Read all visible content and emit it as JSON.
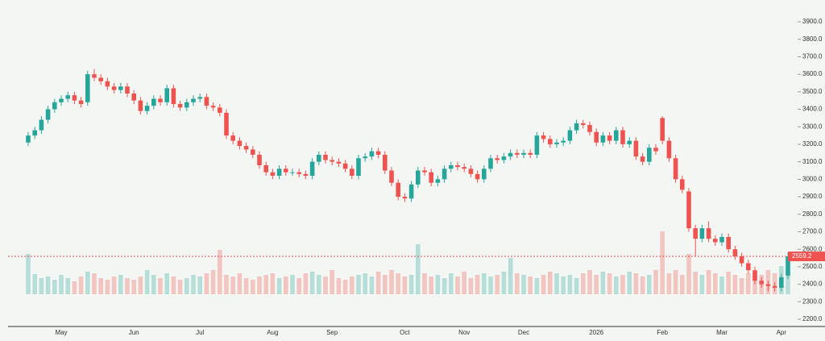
{
  "chart_data": {
    "type": "candlestick",
    "up_color": "#26a69a",
    "down_color": "#ef5350",
    "categories": [
      null,
      null,
      null,
      null,
      null,
      "May",
      null,
      null,
      null,
      null,
      null,
      null,
      null,
      null,
      null,
      null,
      "Jun",
      null,
      null,
      null,
      null,
      null,
      null,
      null,
      null,
      null,
      "Jul",
      null,
      null,
      null,
      null,
      null,
      null,
      null,
      null,
      null,
      null,
      "Aug",
      null,
      null,
      null,
      null,
      null,
      null,
      null,
      null,
      "Sep",
      null,
      null,
      null,
      null,
      null,
      null,
      null,
      null,
      null,
      null,
      "Oct",
      null,
      null,
      null,
      null,
      null,
      null,
      null,
      null,
      "Nov",
      null,
      null,
      null,
      null,
      null,
      null,
      null,
      null,
      "Dec",
      null,
      null,
      null,
      null,
      null,
      null,
      null,
      null,
      null,
      null,
      "2026",
      null,
      null,
      null,
      null,
      null,
      null,
      null,
      null,
      null,
      "Feb",
      null,
      null,
      null,
      null,
      null,
      null,
      null,
      null,
      "Mar",
      null,
      null,
      null,
      null,
      null,
      null,
      null,
      null,
      "Apr",
      null
    ],
    "open": [
      3210,
      3250,
      3280,
      3340,
      3400,
      3440,
      3460,
      3480,
      3450,
      3440,
      3600,
      3580,
      3560,
      3530,
      3510,
      3530,
      3490,
      3450,
      3390,
      3420,
      3460,
      3440,
      3520,
      3430,
      3410,
      3440,
      3460,
      3470,
      3420,
      3410,
      3380,
      3250,
      3220,
      3190,
      3170,
      3140,
      3080,
      3040,
      3020,
      3060,
      3040,
      3040,
      3030,
      3020,
      3100,
      3140,
      3110,
      3100,
      3090,
      3060,
      3020,
      3120,
      3130,
      3160,
      3140,
      3050,
      2980,
      2900,
      2890,
      2970,
      3050,
      3040,
      2980,
      3000,
      3060,
      3080,
      3070,
      3060,
      3030,
      3000,
      3060,
      3120,
      3110,
      3130,
      3150,
      3140,
      3150,
      3140,
      3250,
      3230,
      3200,
      3210,
      3220,
      3280,
      3320,
      3310,
      3270,
      3210,
      3250,
      3220,
      3280,
      3200,
      3220,
      3130,
      3100,
      3180,
      3350,
      3220,
      3120,
      3000,
      2930,
      2720,
      2660,
      2720,
      2660,
      2640,
      2670,
      2600,
      2560,
      2520,
      2480,
      2420,
      2400,
      2390,
      2380,
      2450
    ],
    "high": [
      3270,
      3300,
      3360,
      3420,
      3460,
      3480,
      3500,
      3500,
      3470,
      3620,
      3630,
      3600,
      3580,
      3550,
      3550,
      3550,
      3510,
      3470,
      3440,
      3480,
      3480,
      3540,
      3540,
      3450,
      3460,
      3480,
      3490,
      3490,
      3440,
      3430,
      3400,
      3270,
      3240,
      3210,
      3190,
      3160,
      3100,
      3060,
      3080,
      3080,
      3060,
      3060,
      3050,
      3120,
      3160,
      3160,
      3130,
      3120,
      3110,
      3080,
      3140,
      3150,
      3180,
      3180,
      3160,
      3070,
      3000,
      2920,
      2990,
      3070,
      3070,
      3060,
      3020,
      3080,
      3100,
      3100,
      3090,
      3080,
      3050,
      3080,
      3140,
      3140,
      3150,
      3170,
      3170,
      3170,
      3170,
      3270,
      3270,
      3250,
      3230,
      3240,
      3300,
      3340,
      3340,
      3330,
      3290,
      3270,
      3270,
      3300,
      3300,
      3240,
      3240,
      3150,
      3200,
      3200,
      3360,
      3240,
      3140,
      3020,
      2950,
      2740,
      2740,
      2760,
      2680,
      2690,
      2690,
      2620,
      2580,
      2540,
      2500,
      2440,
      2420,
      2410,
      2460,
      2580
    ],
    "low": [
      3190,
      3230,
      3260,
      3320,
      3380,
      3420,
      3440,
      3430,
      3410,
      3420,
      3560,
      3540,
      3510,
      3490,
      3490,
      3470,
      3430,
      3370,
      3370,
      3400,
      3420,
      3420,
      3410,
      3390,
      3390,
      3420,
      3440,
      3400,
      3390,
      3360,
      3230,
      3200,
      3170,
      3150,
      3120,
      3060,
      3020,
      3000,
      3000,
      3020,
      3020,
      3010,
      3000,
      3000,
      3080,
      3090,
      3080,
      3070,
      3040,
      3000,
      3000,
      3100,
      3110,
      3120,
      3030,
      2960,
      2880,
      2870,
      2870,
      2950,
      3020,
      2960,
      2960,
      2980,
      3040,
      3050,
      3040,
      3010,
      2980,
      2980,
      3040,
      3090,
      3090,
      3110,
      3120,
      3120,
      3120,
      3120,
      3210,
      3180,
      3180,
      3190,
      3200,
      3260,
      3290,
      3250,
      3190,
      3190,
      3200,
      3200,
      3180,
      3180,
      3110,
      3080,
      3080,
      3140,
      3200,
      3100,
      2980,
      2920,
      2700,
      2560,
      2640,
      2640,
      2620,
      2620,
      2580,
      2540,
      2500,
      2460,
      2400,
      2380,
      2360,
      2360,
      2360,
      2430
    ],
    "close": [
      3250,
      3280,
      3340,
      3400,
      3440,
      3460,
      3480,
      3450,
      3430,
      3600,
      3580,
      3560,
      3530,
      3510,
      3530,
      3490,
      3450,
      3390,
      3420,
      3460,
      3440,
      3520,
      3430,
      3410,
      3440,
      3460,
      3470,
      3420,
      3410,
      3380,
      3250,
      3220,
      3190,
      3170,
      3140,
      3080,
      3040,
      3020,
      3060,
      3040,
      3040,
      3030,
      3020,
      3100,
      3140,
      3110,
      3100,
      3090,
      3060,
      3020,
      3120,
      3130,
      3160,
      3140,
      3050,
      2980,
      2900,
      2890,
      2970,
      3050,
      3040,
      2980,
      3000,
      3060,
      3080,
      3070,
      3060,
      3030,
      3000,
      3060,
      3120,
      3110,
      3130,
      3150,
      3140,
      3150,
      3140,
      3250,
      3230,
      3200,
      3210,
      3220,
      3280,
      3320,
      3310,
      3270,
      3210,
      3250,
      3220,
      3280,
      3200,
      3220,
      3130,
      3100,
      3180,
      3160,
      3220,
      3120,
      3000,
      2940,
      2720,
      2660,
      2720,
      2660,
      2640,
      2670,
      2600,
      2560,
      2520,
      2480,
      2420,
      2400,
      2390,
      2380,
      2440,
      2559.2
    ],
    "volume": [
      50,
      25,
      20,
      22,
      18,
      24,
      20,
      16,
      22,
      28,
      26,
      20,
      18,
      22,
      24,
      20,
      18,
      22,
      30,
      24,
      20,
      26,
      22,
      18,
      20,
      24,
      22,
      26,
      30,
      55,
      24,
      22,
      26,
      20,
      18,
      22,
      24,
      26,
      20,
      22,
      24,
      20,
      26,
      28,
      24,
      22,
      30,
      20,
      18,
      22,
      24,
      26,
      22,
      28,
      24,
      30,
      26,
      22,
      24,
      62,
      26,
      22,
      24,
      20,
      26,
      22,
      28,
      20,
      24,
      26,
      22,
      24,
      28,
      45,
      26,
      24,
      22,
      20,
      24,
      28,
      26,
      22,
      24,
      20,
      26,
      30,
      24,
      28,
      26,
      22,
      24,
      28,
      26,
      22,
      24,
      30,
      78,
      26,
      30,
      24,
      50,
      28,
      24,
      30,
      26,
      22,
      28,
      24,
      20,
      26,
      28,
      24,
      30,
      26,
      35,
      30
    ],
    "ylim": [
      2200,
      3900
    ],
    "yticks": [
      {
        "value": 2200,
        "label": "2200.0"
      },
      {
        "value": 2300,
        "label": "2300.0"
      },
      {
        "value": 2400,
        "label": "2400.0"
      },
      {
        "value": 2500,
        "label": "2500.0"
      },
      {
        "value": 2600,
        "label": "2600.0"
      },
      {
        "value": 2700,
        "label": "2700.0"
      },
      {
        "value": 2800,
        "label": "2800.0"
      },
      {
        "value": 2900,
        "label": "2900.0"
      },
      {
        "value": 3000,
        "label": "3000.0"
      },
      {
        "value": 3100,
        "label": "3100.0"
      },
      {
        "value": 3200,
        "label": "3200.0"
      },
      {
        "value": 3300,
        "label": "3300.0"
      },
      {
        "value": 3400,
        "label": "3400.0"
      },
      {
        "value": 3500,
        "label": "3500.0"
      },
      {
        "value": 3600,
        "label": "3600.0"
      },
      {
        "value": 3700,
        "label": "3700.0"
      },
      {
        "value": 3800,
        "label": "3800.0"
      },
      {
        "value": 3900,
        "label": "3900.0"
      }
    ]
  }
}
